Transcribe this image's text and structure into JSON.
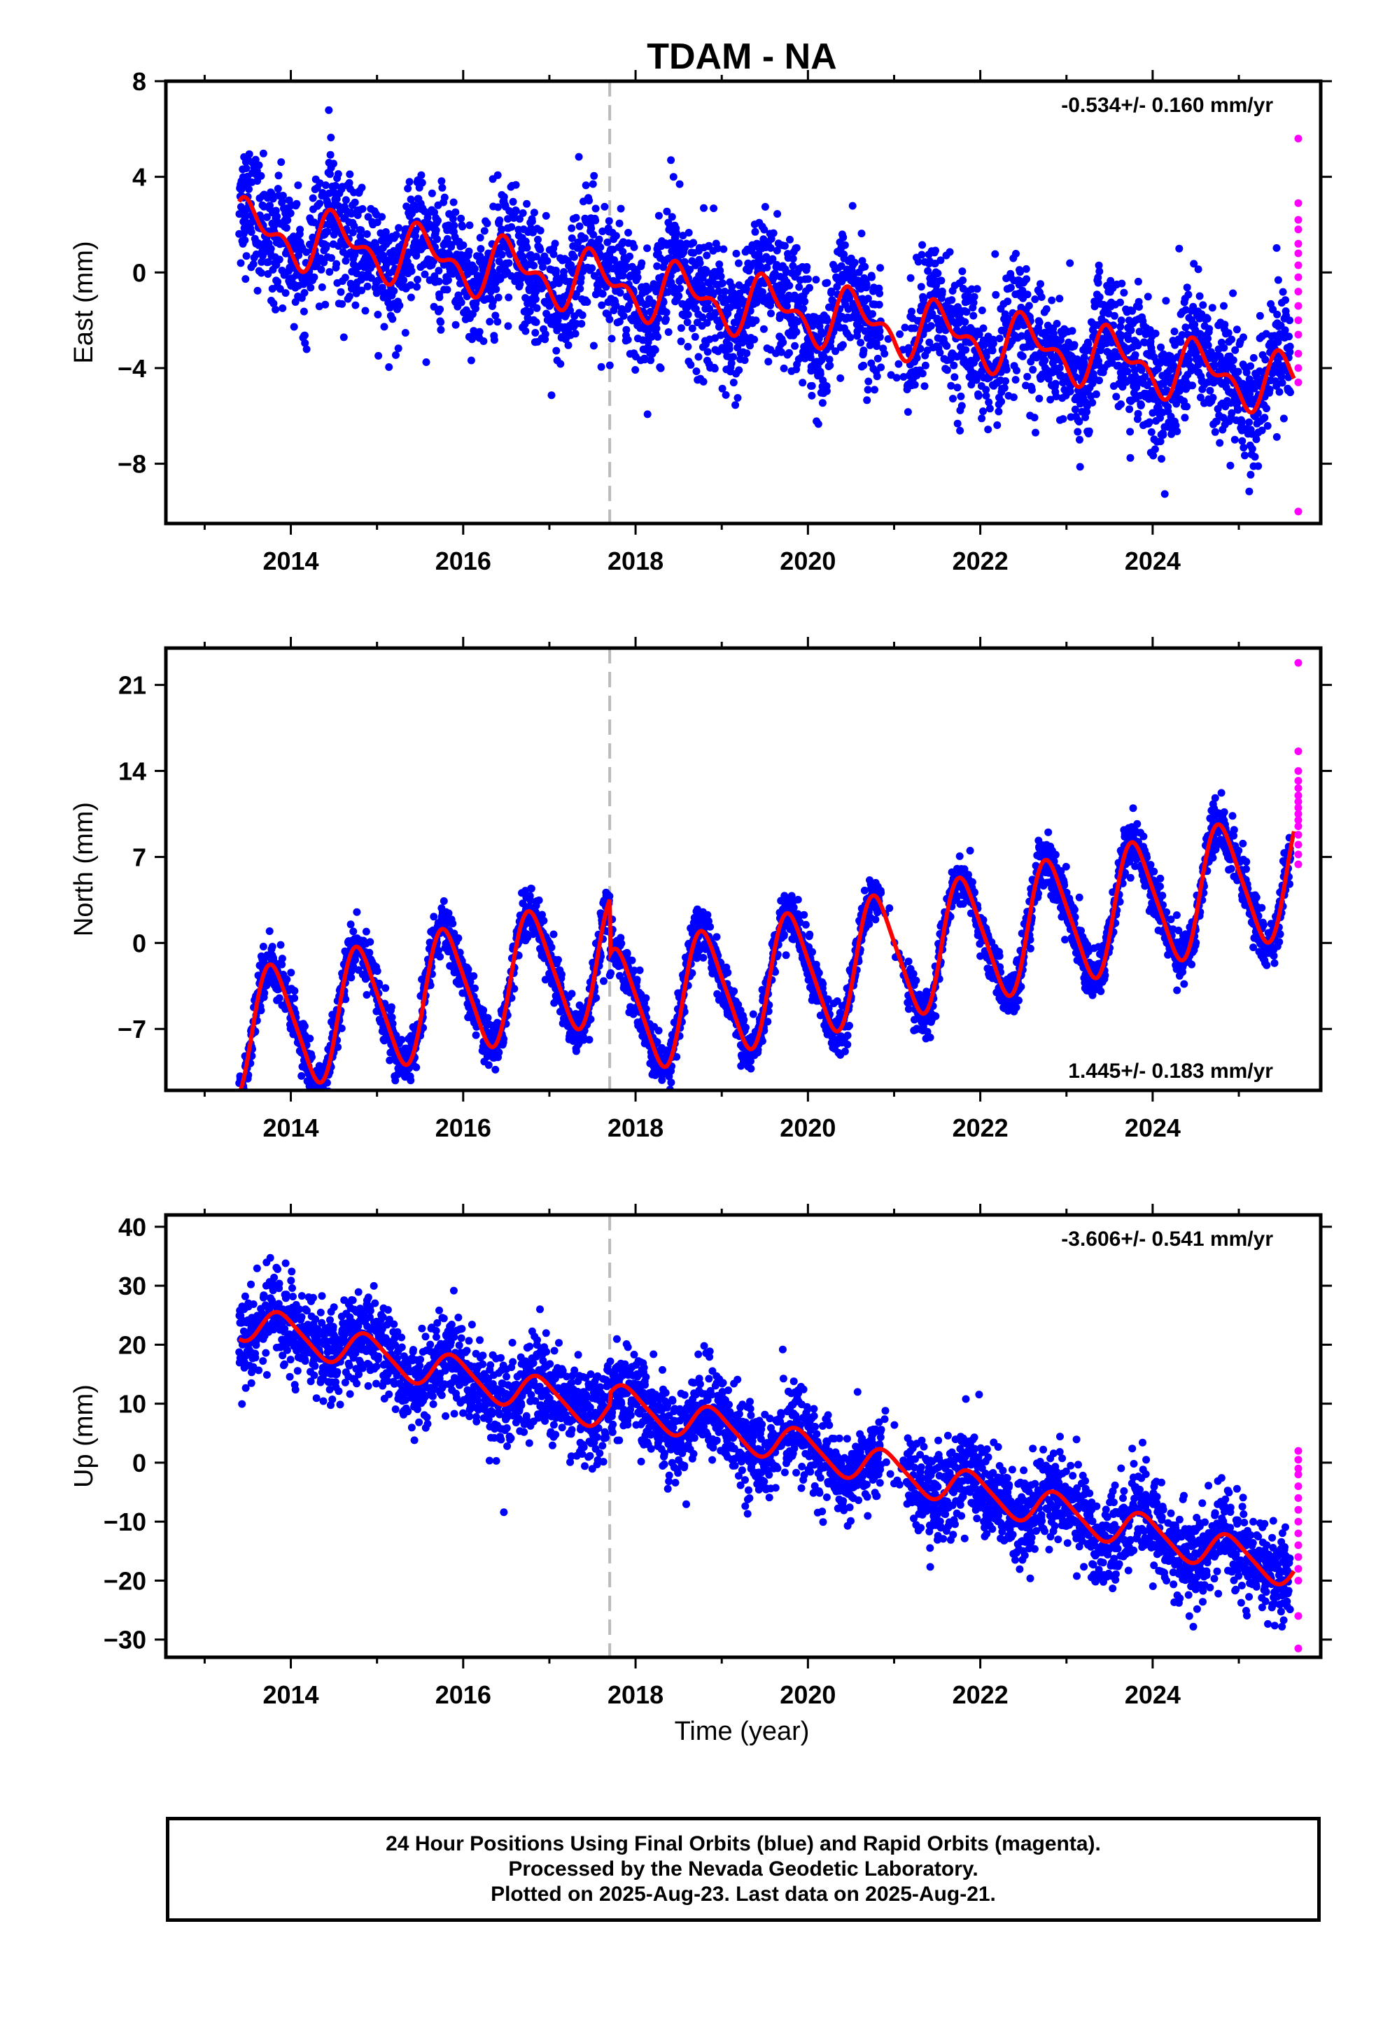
{
  "title": "TDAM - NA",
  "xlabel": "Time (year)",
  "footer": {
    "line1": "24 Hour Positions Using Final Orbits (blue) and Rapid Orbits (magenta).",
    "line2": "Processed by the Nevada Geodetic Laboratory.",
    "line3": "Plotted on 2025-Aug-23. Last data on 2025-Aug-21."
  },
  "colors": {
    "final": "#0000ff",
    "rapid": "#ff00ff",
    "model": "#ff0000",
    "break_line": "#bbbbbb"
  },
  "chart_data": [
    {
      "type": "scatter",
      "component": "east",
      "ylabel": "East (mm)",
      "ylim": [
        -10.5,
        8
      ],
      "xlim": [
        2012.55,
        2025.95
      ],
      "xticks": [
        "2014",
        "2016",
        "2018",
        "2020",
        "2022",
        "2024"
      ],
      "yticks": [
        "8",
        "4",
        "0",
        "−4",
        "−8"
      ],
      "yticks_values": [
        8,
        4,
        0,
        -4,
        -8
      ],
      "rate_text": "-0.534+/- 0.160 mm/yr",
      "rate_position": "top-right",
      "equipment_change_year": 2017.7,
      "span": [
        2013.4,
        2025.64
      ],
      "rate": -0.534,
      "intercept": 1.8,
      "annual_amplitude": 1.0,
      "annual_phase": 0.3,
      "semiannual_amplitude": 0.6,
      "offset_after_break": 0.0,
      "scatter_sd": 1.3,
      "rapid_values": [
        5.6,
        2.9,
        2.2,
        1.8,
        1.2,
        0.8,
        0.3,
        -0.2,
        -0.8,
        -1.4,
        -2.0,
        -2.6,
        -3.4,
        -4.0,
        -4.6,
        -10.0
      ],
      "series": [
        {
          "name": "Final Orbits",
          "color": "blue"
        },
        {
          "name": "Rapid Orbits",
          "color": "magenta"
        },
        {
          "name": "model",
          "color": "red"
        }
      ]
    },
    {
      "type": "scatter",
      "component": "north",
      "ylabel": "North (mm)",
      "ylim": [
        -12,
        24
      ],
      "xlim": [
        2012.55,
        2025.95
      ],
      "xticks": [
        "2014",
        "2016",
        "2018",
        "2020",
        "2022",
        "2024"
      ],
      "yticks": [
        "21",
        "14",
        "7",
        "0",
        "−7"
      ],
      "yticks_values": [
        21,
        14,
        7,
        0,
        -7
      ],
      "rate_text": "1.445+/- 0.183 mm/yr",
      "rate_position": "bottom-right",
      "equipment_change_year": 2017.7,
      "span": [
        2013.4,
        2025.64
      ],
      "rate": 1.445,
      "intercept": -7.5,
      "annual_amplitude": 5.0,
      "annual_phase": 0.55,
      "semiannual_amplitude": 0.8,
      "offset_after_break": -4.5,
      "scatter_sd": 1.0,
      "rapid_values": [
        22.8,
        15.6,
        14.0,
        13.2,
        12.6,
        12.0,
        11.5,
        11.0,
        10.5,
        10.0,
        9.5,
        8.8,
        8.0,
        7.2,
        6.4
      ],
      "series": [
        {
          "name": "Final Orbits",
          "color": "blue"
        },
        {
          "name": "Rapid Orbits",
          "color": "magenta"
        },
        {
          "name": "model",
          "color": "red"
        }
      ]
    },
    {
      "type": "scatter",
      "component": "up",
      "ylabel": "Up (mm)",
      "ylim": [
        -33,
        42
      ],
      "xlim": [
        2012.55,
        2025.95
      ],
      "xticks": [
        "2014",
        "2016",
        "2018",
        "2020",
        "2022",
        "2024"
      ],
      "yticks": [
        "40",
        "30",
        "20",
        "10",
        "0",
        "−10",
        "−20",
        "−30"
      ],
      "yticks_values": [
        40,
        30,
        20,
        10,
        0,
        -10,
        -20,
        -30
      ],
      "rate_text": "-3.606+/- 0.541 mm/yr",
      "rate_position": "top-right",
      "equipment_change_year": 2017.7,
      "span": [
        2013.4,
        2025.64
      ],
      "rate": -3.606,
      "intercept": 24.0,
      "annual_amplitude": 3.0,
      "annual_phase": 0.65,
      "semiannual_amplitude": 0.5,
      "offset_after_break": 2.0,
      "scatter_sd": 3.8,
      "rapid_values": [
        2.0,
        0.5,
        -1.0,
        -2.0,
        -4.0,
        -6.0,
        -8.0,
        -10.0,
        -12.0,
        -14.0,
        -16.0,
        -18.0,
        -20.0,
        -26.0,
        -31.5
      ],
      "series": [
        {
          "name": "Final Orbits",
          "color": "blue"
        },
        {
          "name": "Rapid Orbits",
          "color": "magenta"
        },
        {
          "name": "model",
          "color": "red"
        }
      ]
    }
  ]
}
